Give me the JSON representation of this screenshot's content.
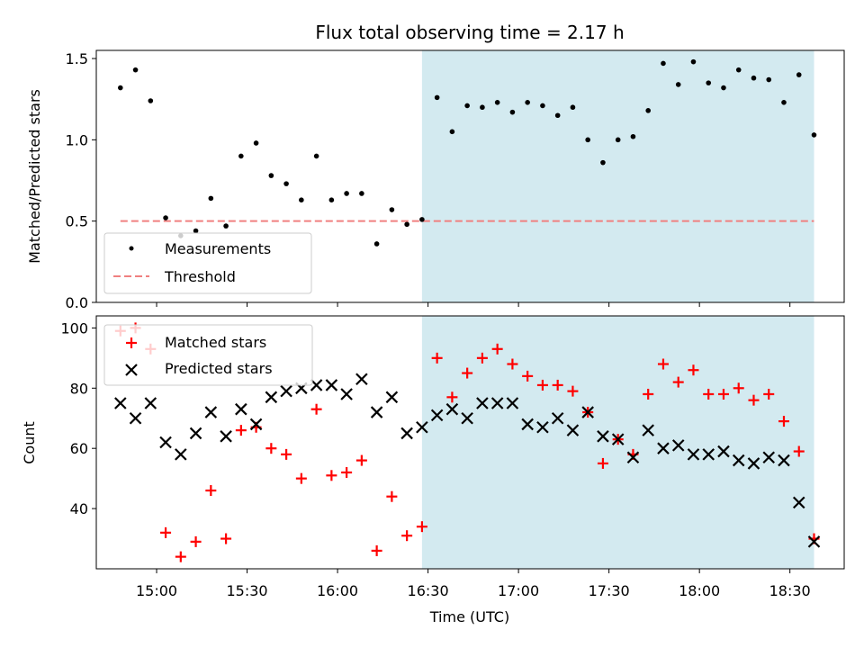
{
  "title": "Flux total observing time = 2.17 h",
  "chart_data": [
    {
      "type": "scatter",
      "ylabel": "Matched/Predicted stars",
      "xlabel": "",
      "ylim": [
        0,
        1.55
      ],
      "yticks": [
        "0.0",
        "0.5",
        "1.0",
        "1.5"
      ],
      "ytick_values": [
        0,
        0.5,
        1.0,
        1.5
      ],
      "shaded_span": [
        "16:28",
        "18:38"
      ],
      "shade_color": "#d3eaf0",
      "threshold": 0.5,
      "legend_position": "lower-left",
      "series": [
        {
          "name": "Measurements",
          "marker": "dot",
          "color": "#000000",
          "x": [
            "14:48",
            "14:53",
            "14:58",
            "15:03",
            "15:08",
            "15:13",
            "15:18",
            "15:23",
            "15:28",
            "15:33",
            "15:38",
            "15:43",
            "15:48",
            "15:53",
            "15:58",
            "16:03",
            "16:08",
            "16:13",
            "16:18",
            "16:23",
            "16:28",
            "16:33",
            "16:38",
            "16:43",
            "16:48",
            "16:53",
            "16:58",
            "17:03",
            "17:08",
            "17:13",
            "17:18",
            "17:23",
            "17:28",
            "17:33",
            "17:38",
            "17:43",
            "17:48",
            "17:53",
            "17:58",
            "18:03",
            "18:08",
            "18:13",
            "18:18",
            "18:23",
            "18:28",
            "18:33",
            "18:38"
          ],
          "y": [
            1.32,
            1.43,
            1.24,
            0.52,
            0.41,
            0.44,
            0.64,
            0.47,
            0.9,
            0.98,
            0.78,
            0.73,
            0.63,
            0.9,
            0.63,
            0.67,
            0.67,
            0.36,
            0.57,
            0.48,
            0.51,
            1.26,
            1.05,
            1.21,
            1.2,
            1.23,
            1.17,
            1.23,
            1.21,
            1.15,
            1.2,
            1.0,
            0.86,
            1.0,
            1.02,
            1.18,
            1.47,
            1.34,
            1.48,
            1.35,
            1.32,
            1.43,
            1.38,
            1.37,
            1.23,
            1.4,
            1.03
          ]
        },
        {
          "name": "Threshold",
          "style": "dashed",
          "color": "#f08080",
          "x": [
            "14:48",
            "18:38"
          ],
          "y": [
            0.5,
            0.5
          ]
        }
      ]
    },
    {
      "type": "scatter",
      "ylabel": "Count",
      "xlabel": "Time (UTC)",
      "ylim": [
        20,
        104
      ],
      "yticks": [
        "40",
        "60",
        "80",
        "100"
      ],
      "ytick_values": [
        40,
        60,
        80,
        100
      ],
      "xticks": [
        "15:00",
        "15:30",
        "16:00",
        "16:30",
        "17:00",
        "17:30",
        "18:00",
        "18:30"
      ],
      "shaded_span": [
        "16:28",
        "18:38"
      ],
      "shade_color": "#d3eaf0",
      "legend_position": "upper-left",
      "series": [
        {
          "name": "Matched stars",
          "marker": "plus",
          "color": "#ff0000",
          "x": [
            "14:48",
            "14:53",
            "14:58",
            "15:03",
            "15:08",
            "15:13",
            "15:18",
            "15:23",
            "15:28",
            "15:33",
            "15:38",
            "15:43",
            "15:48",
            "15:53",
            "15:58",
            "16:03",
            "16:08",
            "16:13",
            "16:18",
            "16:23",
            "16:28",
            "16:33",
            "16:38",
            "16:43",
            "16:48",
            "16:53",
            "16:58",
            "17:03",
            "17:08",
            "17:13",
            "17:18",
            "17:23",
            "17:28",
            "17:33",
            "17:38",
            "17:43",
            "17:48",
            "17:53",
            "17:58",
            "18:03",
            "18:08",
            "18:13",
            "18:18",
            "18:23",
            "18:28",
            "18:33",
            "18:38"
          ],
          "y": [
            99,
            100,
            93,
            32,
            24,
            29,
            46,
            30,
            66,
            67,
            60,
            58,
            50,
            73,
            51,
            52,
            56,
            26,
            44,
            31,
            34,
            90,
            77,
            85,
            90,
            93,
            88,
            84,
            81,
            81,
            79,
            72,
            55,
            63,
            58,
            78,
            88,
            82,
            86,
            78,
            78,
            80,
            76,
            78,
            69,
            59,
            30
          ]
        },
        {
          "name": "Predicted stars",
          "marker": "x",
          "color": "#000000",
          "x": [
            "14:48",
            "14:53",
            "14:58",
            "15:03",
            "15:08",
            "15:13",
            "15:18",
            "15:23",
            "15:28",
            "15:33",
            "15:38",
            "15:43",
            "15:48",
            "15:53",
            "15:58",
            "16:03",
            "16:08",
            "16:13",
            "16:18",
            "16:23",
            "16:28",
            "16:33",
            "16:38",
            "16:43",
            "16:48",
            "16:53",
            "16:58",
            "17:03",
            "17:08",
            "17:13",
            "17:18",
            "17:23",
            "17:28",
            "17:33",
            "17:38",
            "17:43",
            "17:48",
            "17:53",
            "17:58",
            "18:03",
            "18:08",
            "18:13",
            "18:18",
            "18:23",
            "18:28",
            "18:33",
            "18:38"
          ],
          "y": [
            75,
            70,
            75,
            62,
            58,
            65,
            72,
            64,
            73,
            68,
            77,
            79,
            80,
            81,
            81,
            78,
            83,
            72,
            77,
            65,
            67,
            71,
            73,
            70,
            75,
            75,
            75,
            68,
            67,
            70,
            66,
            72,
            64,
            63,
            57,
            66,
            60,
            61,
            58,
            58,
            59,
            56,
            55,
            57,
            56,
            42,
            29
          ]
        }
      ]
    }
  ]
}
